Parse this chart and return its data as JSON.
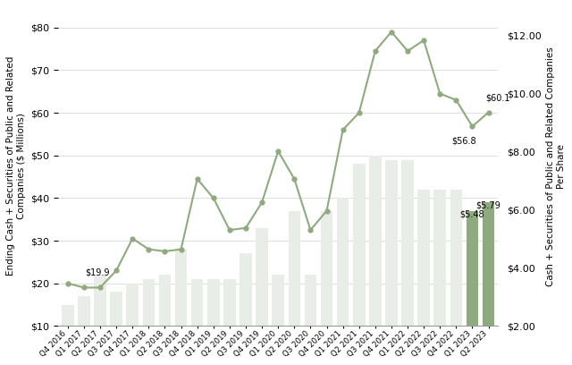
{
  "quarters": [
    "Q4 2016",
    "Q1 2017",
    "Q2 2017",
    "Q3 2017",
    "Q4 2017",
    "Q1 2018",
    "Q2 2018",
    "Q3 2018",
    "Q4 2018",
    "Q1 2019",
    "Q2 2019",
    "Q3 2019",
    "Q4 2019",
    "Q1 2020",
    "Q2 2020",
    "Q3 2020",
    "Q4 2020",
    "Q1 2021",
    "Q2 2021",
    "Q3 2021",
    "Q4 2021",
    "Q1 2022",
    "Q2 2022",
    "Q3 2022",
    "Q4 2022",
    "Q1 2023",
    "Q2 2023"
  ],
  "bar_values_millions": [
    15,
    17,
    22,
    18,
    20,
    21,
    22,
    28,
    21,
    21,
    21,
    27,
    33,
    22,
    37,
    22,
    37,
    40,
    48,
    50,
    49,
    49,
    42,
    42,
    42,
    37,
    39
  ],
  "line_values": [
    20.0,
    19.0,
    19.0,
    23.0,
    30.5,
    28.0,
    27.5,
    28.0,
    44.5,
    40.0,
    32.5,
    33.0,
    39.0,
    51.0,
    44.5,
    32.5,
    37.0,
    56.0,
    60.0,
    74.5,
    79.0,
    74.5,
    77.0,
    64.5,
    63.0,
    56.8,
    60.1
  ],
  "bar_highlight_indices": [
    25,
    26
  ],
  "label_19_9": "$19.9",
  "label_56_8": "$56.8",
  "label_60_1": "$60.1",
  "label_5_48": "$5.48",
  "label_5_79": "$5.79",
  "bar_color_normal": "#e8ede8",
  "bar_color_highlight": "#8faa7e",
  "line_color": "#8faa7e",
  "ylabel_left": "Ending Cash + Securities of Public and Related\nCompanies ($ Millions)",
  "ylabel_right": "Cash + Securities of Public and Related Companies\nPer Share",
  "ylim_left": [
    10,
    85
  ],
  "ylim_right": [
    2.0,
    13.0
  ],
  "yticks_left": [
    10,
    20,
    30,
    40,
    50,
    60,
    70,
    80
  ],
  "yticks_right": [
    2.0,
    4.0,
    6.0,
    8.0,
    10.0,
    12.0
  ],
  "background_color": "#ffffff",
  "grid_color": "#d0d0d0"
}
